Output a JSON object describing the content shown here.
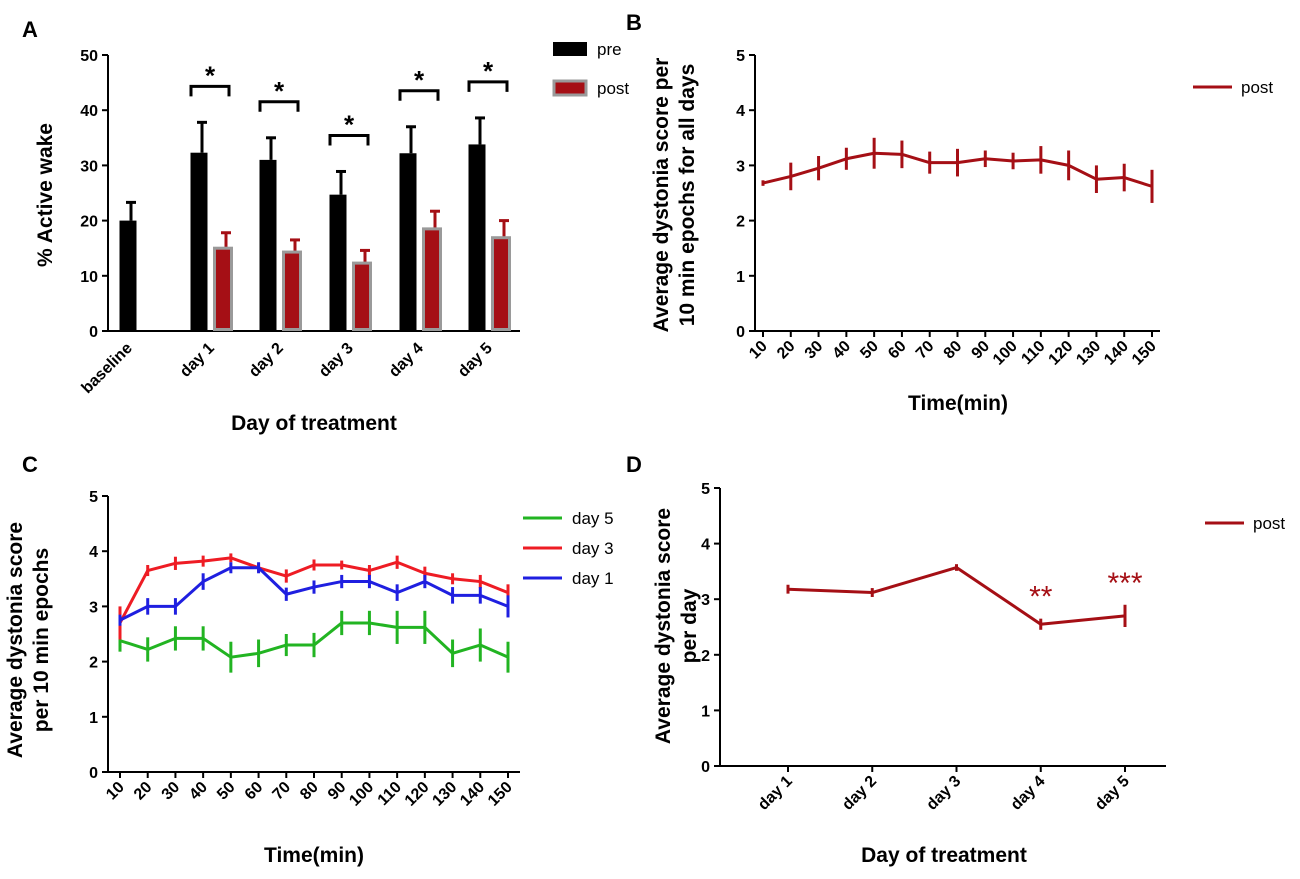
{
  "figure": {
    "colors": {
      "black": "#000000",
      "darkred": "#a50f15",
      "red": "#ee1c24",
      "blue": "#1f1fe0",
      "green": "#22b422",
      "gray": "#9a9a9a"
    }
  },
  "chart_data": [
    {
      "panel": "A",
      "type": "bar",
      "title": "",
      "xlabel": "Day of treatment",
      "ylabel": "% Active wake",
      "ylim": [
        0,
        50
      ],
      "yticks": [
        "0",
        "10",
        "20",
        "30",
        "40",
        "50"
      ],
      "categories": [
        "baseline",
        "day 1",
        "day 2",
        "day 3",
        "day 4",
        "day 5"
      ],
      "series": [
        {
          "name": "pre",
          "values": [
            20,
            32.3,
            31,
            24.7,
            32.2,
            33.8
          ],
          "errors": [
            3.3,
            5.5,
            4,
            4.2,
            4.8,
            4.8
          ]
        },
        {
          "name": "post",
          "values": [
            null,
            15,
            14.3,
            12.3,
            18.5,
            16.9
          ],
          "errors": [
            null,
            2.8,
            2.2,
            2.3,
            3.2,
            3.1
          ]
        }
      ],
      "significance": [
        "",
        "*",
        "*",
        "*",
        "*",
        "*"
      ],
      "legend": [
        "pre",
        "post"
      ]
    },
    {
      "panel": "B",
      "type": "line",
      "title": "",
      "xlabel": "Time(min)",
      "ylabel": "Average dystonia score per 10 min epochs for all days",
      "ylabel_lines": [
        "Average dystonia score per",
        "10 min epochs for all days"
      ],
      "ylim": [
        0,
        5
      ],
      "yticks": [
        "0",
        "1",
        "2",
        "3",
        "4",
        "5"
      ],
      "x": [
        "10",
        "20",
        "30",
        "40",
        "50",
        "60",
        "70",
        "80",
        "90",
        "100",
        "110",
        "120",
        "130",
        "140",
        "150"
      ],
      "series": [
        {
          "name": "post",
          "values": [
            2.68,
            2.8,
            2.95,
            3.12,
            3.22,
            3.2,
            3.05,
            3.05,
            3.12,
            3.08,
            3.1,
            3.0,
            2.75,
            2.78,
            2.62
          ],
          "errors": [
            0.05,
            0.25,
            0.22,
            0.2,
            0.28,
            0.25,
            0.2,
            0.25,
            0.15,
            0.15,
            0.25,
            0.27,
            0.25,
            0.25,
            0.3
          ]
        }
      ],
      "legend": [
        "post"
      ]
    },
    {
      "panel": "C",
      "type": "line",
      "title": "",
      "xlabel": "Time(min)",
      "ylabel": "Average dystonia score per 10 min epochs",
      "ylabel_lines": [
        "Average dystonia score",
        "per 10 min epochs"
      ],
      "ylim": [
        0,
        5
      ],
      "yticks": [
        "0",
        "1",
        "2",
        "3",
        "4",
        "5"
      ],
      "x": [
        "10",
        "20",
        "30",
        "40",
        "50",
        "60",
        "70",
        "80",
        "90",
        "100",
        "110",
        "120",
        "130",
        "140",
        "150"
      ],
      "series": [
        {
          "name": "day 5",
          "values": [
            2.38,
            2.22,
            2.42,
            2.42,
            2.08,
            2.15,
            2.3,
            2.3,
            2.7,
            2.7,
            2.62,
            2.62,
            2.15,
            2.3,
            2.08
          ],
          "errors": [
            0.2,
            0.22,
            0.22,
            0.22,
            0.28,
            0.25,
            0.2,
            0.22,
            0.22,
            0.22,
            0.3,
            0.3,
            0.25,
            0.3,
            0.28
          ]
        },
        {
          "name": "day 3",
          "values": [
            2.7,
            3.65,
            3.78,
            3.82,
            3.88,
            3.7,
            3.55,
            3.75,
            3.75,
            3.65,
            3.8,
            3.6,
            3.5,
            3.45,
            3.25
          ],
          "errors": [
            0.3,
            0.1,
            0.12,
            0.1,
            0.08,
            0.08,
            0.12,
            0.1,
            0.08,
            0.1,
            0.12,
            0.12,
            0.1,
            0.12,
            0.15
          ]
        },
        {
          "name": "day 1",
          "values": [
            2.75,
            3.0,
            3.0,
            3.45,
            3.7,
            3.7,
            3.22,
            3.35,
            3.45,
            3.45,
            3.25,
            3.45,
            3.2,
            3.2,
            3.0
          ],
          "errors": [
            0.1,
            0.15,
            0.15,
            0.15,
            0.1,
            0.1,
            0.12,
            0.12,
            0.12,
            0.12,
            0.15,
            0.12,
            0.15,
            0.15,
            0.2
          ]
        }
      ],
      "legend": [
        "day 5",
        "day 3",
        "day 1"
      ]
    },
    {
      "panel": "D",
      "type": "line",
      "title": "",
      "xlabel": "Day of treatment",
      "ylabel": "Average dystonia score per day",
      "ylabel_lines": [
        "Average dystonia score",
        "per day"
      ],
      "ylim": [
        0,
        5
      ],
      "yticks": [
        "0",
        "1",
        "2",
        "3",
        "4",
        "5"
      ],
      "x": [
        "day 1",
        "day 2",
        "day 3",
        "day 4",
        "day 5"
      ],
      "series": [
        {
          "name": "post",
          "values": [
            3.18,
            3.12,
            3.57,
            2.55,
            2.7
          ],
          "errors": [
            0.08,
            0.08,
            0.06,
            0.1,
            0.2
          ]
        }
      ],
      "significance": [
        "",
        "",
        "",
        "**",
        "***"
      ],
      "legend": [
        "post"
      ]
    }
  ]
}
